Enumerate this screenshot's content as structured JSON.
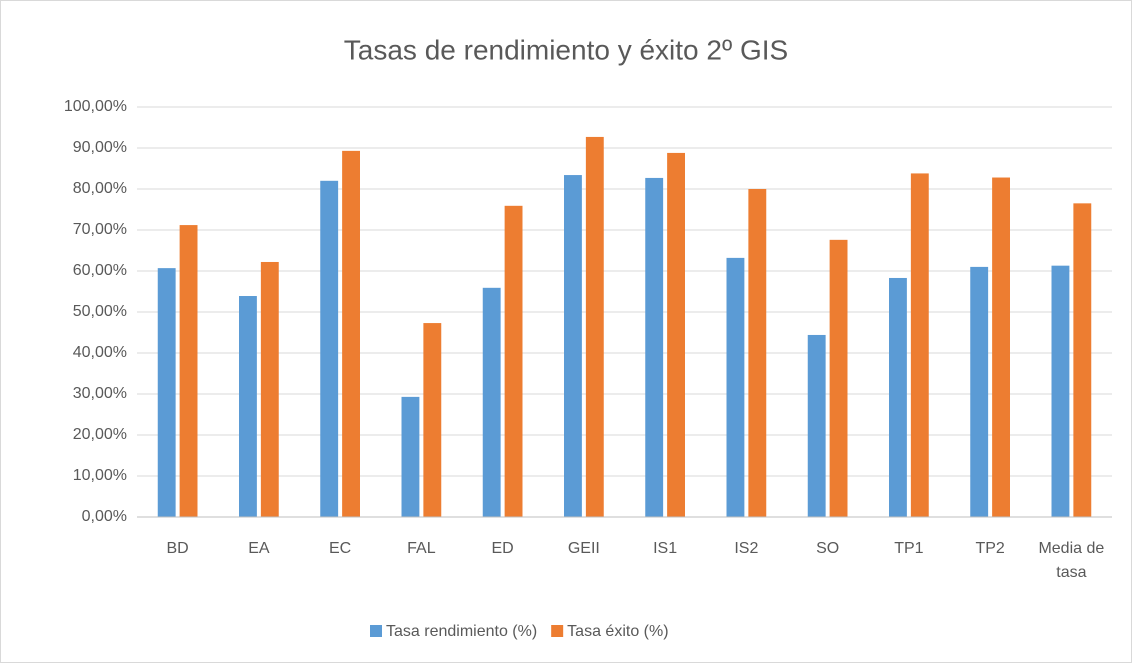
{
  "chart_data": {
    "type": "bar",
    "title": "Tasas de rendimiento y éxito 2º GIS",
    "categories": [
      "BD",
      "EA",
      "EC",
      "FAL",
      "ED",
      "GEII",
      "IS1",
      "IS2",
      "SO",
      "TP1",
      "TP2",
      "Media de tasa"
    ],
    "series": [
      {
        "name": "Tasa rendimiento (%)",
        "color": "#5b9bd5",
        "values": [
          60.7,
          53.9,
          82.0,
          29.3,
          55.9,
          83.4,
          82.7,
          63.2,
          44.4,
          58.3,
          61.0,
          61.3
        ]
      },
      {
        "name": "Tasa éxito (%)",
        "color": "#ed7d31",
        "values": [
          71.2,
          62.2,
          89.3,
          47.3,
          75.9,
          92.7,
          88.8,
          80.0,
          67.6,
          83.8,
          82.8,
          76.5
        ]
      }
    ],
    "ylim": [
      0,
      100
    ],
    "yticks": [
      {
        "value": 0,
        "label": "0,00%"
      },
      {
        "value": 10,
        "label": "10,00%"
      },
      {
        "value": 20,
        "label": "20,00%"
      },
      {
        "value": 30,
        "label": "30,00%"
      },
      {
        "value": 40,
        "label": "40,00%"
      },
      {
        "value": 50,
        "label": "50,00%"
      },
      {
        "value": 60,
        "label": "60,00%"
      },
      {
        "value": 70,
        "label": "70,00%"
      },
      {
        "value": 80,
        "label": "80,00%"
      },
      {
        "value": 90,
        "label": "90,00%"
      },
      {
        "value": 100,
        "label": "100,00%"
      }
    ],
    "grid": true,
    "legend": "bottom"
  }
}
